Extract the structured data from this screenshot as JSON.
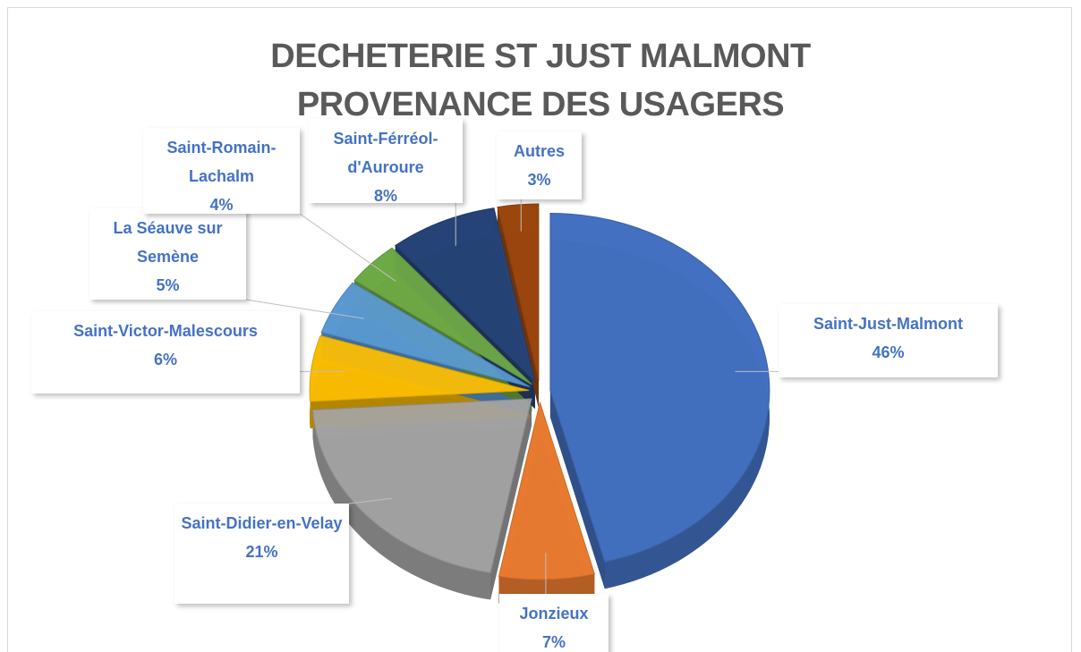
{
  "chart_data": {
    "type": "pie",
    "title": "DECHETERIE ST JUST MALMONT",
    "subtitle": "PROVENANCE DES USAGERS",
    "categories": [
      "Saint-Just-Malmont",
      "Jonzieux",
      "Saint-Didier-en-Velay",
      "Saint-Victor-Malescours",
      "La Séauve sur Semène",
      "Saint-Romain-Lachalm",
      "Saint-Férréol-d'Auroure",
      "Autres"
    ],
    "values": [
      46,
      7,
      21,
      6,
      5,
      4,
      8,
      3
    ],
    "value_labels": [
      "46%",
      "7%",
      "21%",
      "6%",
      "5%",
      "4%",
      "8%",
      "3%"
    ],
    "colors": [
      "#4472c4",
      "#ed7d31",
      "#a5a5a5",
      "#ffc000",
      "#5b9bd5",
      "#70ad47",
      "#264478",
      "#9e480e"
    ]
  }
}
